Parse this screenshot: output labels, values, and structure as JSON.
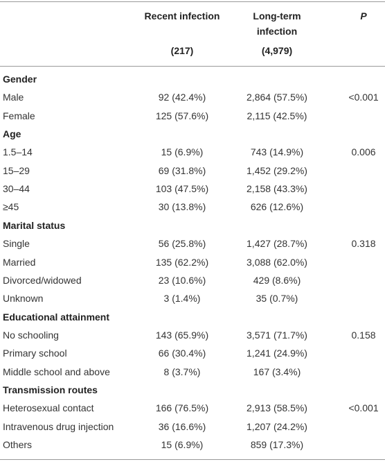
{
  "header": {
    "recent_title": "Recent infection",
    "recent_n": "(217)",
    "long_title": "Long-term infection",
    "long_n": "(4,979)",
    "p": "P"
  },
  "sections": [
    {
      "title": "Gender",
      "rows": [
        {
          "label": "Male",
          "recent": "92 (42.4%)",
          "long": "2,864 (57.5%)",
          "p": "<0.001"
        },
        {
          "label": "Female",
          "recent": "125 (57.6%)",
          "long": "2,115 (42.5%)"
        }
      ]
    },
    {
      "title": "Age",
      "rows": [
        {
          "label": "1.5–14",
          "recent": "15 (6.9%)",
          "long": "743 (14.9%)",
          "p": "0.006"
        },
        {
          "label": "15–29",
          "recent": "69 (31.8%)",
          "long": "1,452 (29.2%)"
        },
        {
          "label": "30–44",
          "recent": "103 (47.5%)",
          "long": "2,158 (43.3%)"
        },
        {
          "label": "≥45",
          "recent": "30 (13.8%)",
          "long": "626 (12.6%)"
        }
      ]
    },
    {
      "title": "Marital status",
      "rows": [
        {
          "label": "Single",
          "recent": "56 (25.8%)",
          "long": "1,427 (28.7%)",
          "p": "0.318"
        },
        {
          "label": "Married",
          "recent": "135 (62.2%)",
          "long": "3,088 (62.0%)"
        },
        {
          "label": "Divorced/widowed",
          "recent": "23 (10.6%)",
          "long": "429 (8.6%)"
        },
        {
          "label": "Unknown",
          "recent": "3 (1.4%)",
          "long": "35 (0.7%)"
        }
      ]
    },
    {
      "title": "Educational attainment",
      "rows": [
        {
          "label": "No schooling",
          "recent": "143 (65.9%)",
          "long": "3,571 (71.7%)",
          "p": "0.158"
        },
        {
          "label": "Primary school",
          "recent": "66 (30.4%)",
          "long": "1,241 (24.9%)"
        },
        {
          "label": "Middle school and above",
          "recent": "8 (3.7%)",
          "long": "167 (3.4%)"
        }
      ]
    },
    {
      "title": "Transmission routes",
      "rows": [
        {
          "label": "Heterosexual contact",
          "recent": "166 (76.5%)",
          "long": "2,913 (58.5%)",
          "p": "<0.001"
        },
        {
          "label": "Intravenous drug injection",
          "recent": "36 (16.6%)",
          "long": "1,207 (24.2%)"
        },
        {
          "label": "Others",
          "recent": "15 (6.9%)",
          "long": "859 (17.3%)"
        }
      ]
    }
  ]
}
